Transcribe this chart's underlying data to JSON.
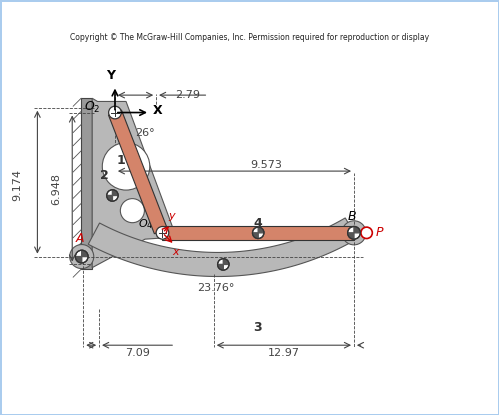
{
  "title": "Copyright © The McGraw-Hill Companies, Inc. Permission required for reproduction or display",
  "background_color": "#ffffff",
  "link_color": "#d4846a",
  "link_color2": "#c87060",
  "gray_color": "#b0b0b0",
  "dark_gray": "#888888",
  "wall_color": "#888888",
  "pin_color": "#ffffff",
  "dim_color": "#333333",
  "red_color": "#cc0000",
  "O2": [
    0.0,
    0.0
  ],
  "O4": [
    1.5,
    -3.8
  ],
  "A": [
    -1.2,
    -4.4
  ],
  "B": [
    7.5,
    -3.8
  ],
  "P": [
    7.9,
    -3.8
  ],
  "dims": {
    "2_79": "2.79",
    "6_948": "6.948",
    "9_174": "9.174",
    "9_573": "9.573",
    "23_76": "23.76°",
    "7_09": "7.09",
    "12_97": "12.97",
    "26deg": "26°",
    "link1": "1",
    "link2": "2",
    "link3": "3",
    "link4": "4"
  }
}
